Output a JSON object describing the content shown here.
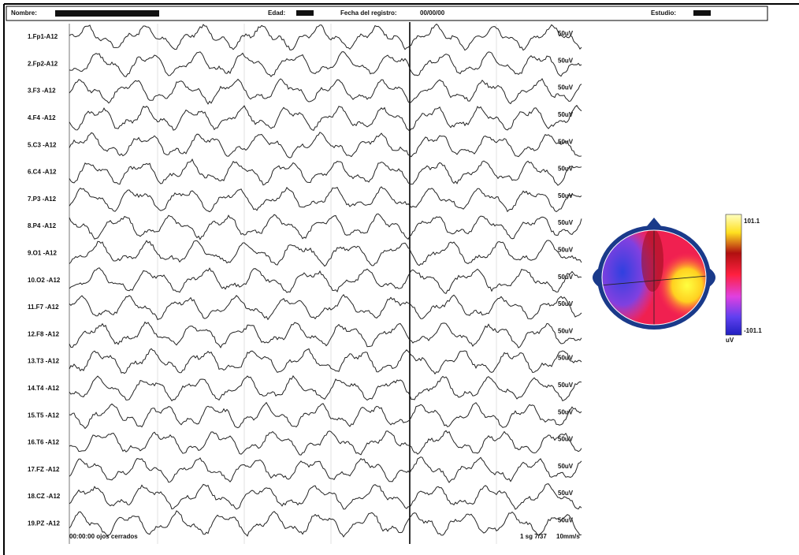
{
  "header": {
    "name_label": "Nombre:",
    "age_label": "Edad:",
    "date_label": "Fecha del registro:",
    "date": "00/00/00",
    "study_label": "Estudio:"
  },
  "channels": [
    {
      "label": "1.Fp1-A12",
      "scale": "50uV"
    },
    {
      "label": "2.Fp2-A12",
      "scale": "50uV"
    },
    {
      "label": "3.F3 -A12",
      "scale": "50uV"
    },
    {
      "label": "4.F4 -A12",
      "scale": "50uV"
    },
    {
      "label": "5.C3 -A12",
      "scale": "50uV"
    },
    {
      "label": "6.C4 -A12",
      "scale": "50uV"
    },
    {
      "label": "7.P3 -A12",
      "scale": "50uV"
    },
    {
      "label": "8.P4 -A12",
      "scale": "50uV"
    },
    {
      "label": "9.O1 -A12",
      "scale": "50uV"
    },
    {
      "label": "10.O2 -A12",
      "scale": "50uV"
    },
    {
      "label": "11.F7 -A12",
      "scale": "50uV"
    },
    {
      "label": "12.F8 -A12",
      "scale": "50uV"
    },
    {
      "label": "13.T3 -A12",
      "scale": "50uV"
    },
    {
      "label": "14.T4 -A12",
      "scale": "50uV"
    },
    {
      "label": "15.T5 -A12",
      "scale": "50uV"
    },
    {
      "label": "16.T6 -A12",
      "scale": "50uV"
    },
    {
      "label": "17.FZ -A12",
      "scale": "50uV"
    },
    {
      "label": "18.CZ -A12",
      "scale": "50uV"
    },
    {
      "label": "19.PZ -A12",
      "scale": "50uV"
    }
  ],
  "footer": {
    "event": "00:00:00 ojos cerrados",
    "timebase": "1 sg 7/37",
    "speed": "10mm/s"
  },
  "topomap": {
    "max_label": "101.1",
    "min_label": "-101.1",
    "unit": "uV"
  }
}
